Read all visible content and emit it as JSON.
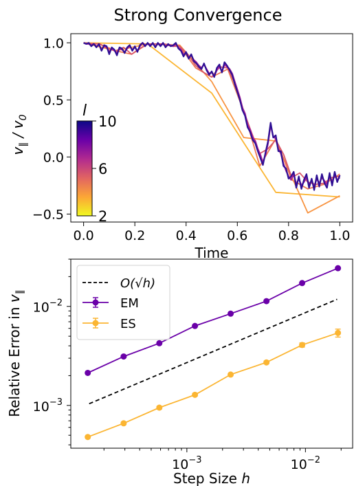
{
  "figure": {
    "title": "Strong Convergence"
  },
  "chart_data": [
    {
      "type": "line",
      "title": "Strong Convergence",
      "xlabel": "Time",
      "ylabel": "v_∥ / v_0",
      "xlim": [
        -0.05,
        1.05
      ],
      "ylim": [
        -0.57,
        1.08
      ],
      "xticks": [
        {
          "v": 0.0,
          "label": "0.0"
        },
        {
          "v": 0.2,
          "label": "0.2"
        },
        {
          "v": 0.4,
          "label": "0.4"
        },
        {
          "v": 0.6,
          "label": "0.6"
        },
        {
          "v": 0.8,
          "label": "0.8"
        },
        {
          "v": 1.0,
          "label": "1.0"
        }
      ],
      "yticks": [
        {
          "v": -0.5,
          "label": "−0.5"
        },
        {
          "v": 0.0,
          "label": "0.0"
        },
        {
          "v": 0.5,
          "label": "0.5"
        },
        {
          "v": 1.0,
          "label": "1.0"
        }
      ],
      "colorbar": {
        "label": "l",
        "min": 2,
        "max": 10,
        "ticks": [
          {
            "v": 2,
            "label": "2"
          },
          {
            "v": 6,
            "label": "6"
          },
          {
            "v": 10,
            "label": "10"
          }
        ],
        "colormap": [
          "#f0f921",
          "#fca636",
          "#e16462",
          "#b12a90",
          "#6a00a8",
          "#0d0887"
        ]
      },
      "series": [
        {
          "level": 2,
          "color": "#fbb532",
          "x": [
            0,
            0.25,
            0.5,
            0.75,
            1.0
          ],
          "y": [
            1.0,
            0.99,
            0.56,
            -0.31,
            -0.35
          ]
        },
        {
          "level": 3,
          "color": "#f89441",
          "x": [
            0,
            0.125,
            0.25,
            0.375,
            0.5,
            0.625,
            0.75,
            0.875,
            1.0
          ],
          "y": [
            1.0,
            0.93,
            0.99,
            0.98,
            0.66,
            0.17,
            0.14,
            -0.49,
            -0.34
          ]
        },
        {
          "level": 4,
          "color": "#ec7853",
          "x": [
            0,
            0.0625,
            0.125,
            0.1875,
            0.25,
            0.3125,
            0.375,
            0.4375,
            0.5,
            0.5625,
            0.625,
            0.6875,
            0.75,
            0.8125,
            0.875,
            0.9375,
            1.0
          ],
          "y": [
            1.0,
            0.99,
            0.93,
            0.9,
            0.99,
            0.99,
            0.97,
            0.78,
            0.7,
            0.77,
            0.4,
            -0.08,
            0.16,
            -0.2,
            -0.28,
            -0.24,
            -0.15
          ]
        },
        {
          "level": 5,
          "color": "#d8576b",
          "x": [
            0,
            0.03125,
            0.0625,
            0.09375,
            0.125,
            0.15625,
            0.1875,
            0.21875,
            0.25,
            0.28125,
            0.3125,
            0.34375,
            0.375,
            0.40625,
            0.4375,
            0.46875,
            0.5,
            0.53125,
            0.5625,
            0.59375,
            0.625,
            0.65625,
            0.6875,
            0.71875,
            0.75,
            0.78125,
            0.8125,
            0.84375,
            0.875,
            0.90625,
            0.9375,
            0.96875,
            1.0
          ],
          "y": [
            1.0,
            0.99,
            0.99,
            0.95,
            0.93,
            0.96,
            0.9,
            0.95,
            0.99,
            0.99,
            0.99,
            0.97,
            0.97,
            0.9,
            0.8,
            0.74,
            0.7,
            0.79,
            0.78,
            0.63,
            0.4,
            0.21,
            0.03,
            0.07,
            0.15,
            0.02,
            -0.18,
            -0.14,
            -0.22,
            -0.24,
            -0.23,
            -0.18,
            -0.17
          ]
        },
        {
          "level": 7,
          "color": "#a62098",
          "x": [
            0,
            0.01,
            0.02,
            0.03,
            0.04,
            0.05,
            0.06,
            0.07,
            0.08,
            0.09,
            0.1,
            0.11,
            0.12,
            0.13,
            0.14,
            0.15,
            0.16,
            0.17,
            0.18,
            0.19,
            0.2,
            0.21,
            0.22,
            0.23,
            0.24,
            0.25,
            0.26,
            0.27,
            0.28,
            0.29,
            0.3,
            0.31,
            0.32,
            0.33,
            0.34,
            0.35,
            0.36,
            0.37,
            0.38,
            0.39,
            0.4,
            0.41,
            0.42,
            0.43,
            0.44,
            0.45,
            0.46,
            0.47,
            0.48,
            0.49,
            0.5,
            0.51,
            0.52,
            0.53,
            0.54,
            0.55,
            0.56,
            0.57,
            0.58,
            0.59,
            0.6,
            0.61,
            0.62,
            0.63,
            0.64,
            0.65,
            0.66,
            0.67,
            0.68,
            0.69,
            0.7,
            0.71,
            0.72,
            0.73,
            0.74,
            0.75,
            0.76,
            0.77,
            0.78,
            0.79,
            0.8,
            0.81,
            0.82,
            0.83,
            0.84,
            0.85,
            0.86,
            0.87,
            0.88,
            0.89,
            0.9,
            0.91,
            0.92,
            0.93,
            0.94,
            0.95,
            0.96,
            0.97,
            0.98,
            0.99,
            1.0
          ],
          "y": [
            1.0,
            0.99,
            0.99,
            0.98,
            0.99,
            0.97,
            0.98,
            0.94,
            0.97,
            0.96,
            0.92,
            0.95,
            0.93,
            0.91,
            0.95,
            0.94,
            0.92,
            0.95,
            0.97,
            0.94,
            0.96,
            0.93,
            0.97,
            1.0,
            0.98,
            0.99,
            0.98,
            0.99,
            0.97,
            0.99,
            0.98,
            0.99,
            0.97,
            0.98,
            0.98,
            0.97,
            0.99,
            0.96,
            0.94,
            0.9,
            0.91,
            0.87,
            0.89,
            0.85,
            0.83,
            0.8,
            0.78,
            0.81,
            0.77,
            0.73,
            0.74,
            0.71,
            0.76,
            0.79,
            0.75,
            0.81,
            0.79,
            0.77,
            0.73,
            0.66,
            0.59,
            0.52,
            0.43,
            0.38,
            0.28,
            0.24,
            0.17,
            0.14,
            0.07,
            0.02,
            -0.05,
            0.02,
            0.12,
            0.28,
            0.18,
            0.16,
            0.07,
            0.03,
            -0.06,
            -0.12,
            -0.17,
            -0.2,
            -0.15,
            -0.24,
            -0.19,
            -0.25,
            -0.22,
            -0.18,
            -0.24,
            -0.21,
            -0.26,
            -0.19,
            -0.23,
            -0.18,
            -0.21,
            -0.24,
            -0.17,
            -0.22,
            -0.16,
            -0.2,
            -0.18
          ]
        },
        {
          "level": 10,
          "color": "#2e0f94",
          "x": [
            0,
            0.01,
            0.02,
            0.03,
            0.04,
            0.05,
            0.06,
            0.07,
            0.08,
            0.09,
            0.1,
            0.11,
            0.12,
            0.13,
            0.14,
            0.15,
            0.16,
            0.17,
            0.18,
            0.19,
            0.2,
            0.21,
            0.22,
            0.23,
            0.24,
            0.25,
            0.26,
            0.27,
            0.28,
            0.29,
            0.3,
            0.31,
            0.32,
            0.33,
            0.34,
            0.35,
            0.36,
            0.37,
            0.38,
            0.39,
            0.4,
            0.41,
            0.42,
            0.43,
            0.44,
            0.45,
            0.46,
            0.47,
            0.48,
            0.49,
            0.5,
            0.51,
            0.52,
            0.53,
            0.54,
            0.55,
            0.56,
            0.57,
            0.58,
            0.59,
            0.6,
            0.61,
            0.62,
            0.63,
            0.64,
            0.65,
            0.66,
            0.67,
            0.68,
            0.69,
            0.7,
            0.71,
            0.72,
            0.73,
            0.74,
            0.75,
            0.76,
            0.77,
            0.78,
            0.79,
            0.8,
            0.81,
            0.82,
            0.83,
            0.84,
            0.85,
            0.86,
            0.87,
            0.88,
            0.89,
            0.9,
            0.91,
            0.92,
            0.93,
            0.94,
            0.95,
            0.96,
            0.97,
            0.98,
            0.99,
            1.0
          ],
          "y": [
            1.0,
            0.99,
            1.0,
            0.97,
            0.99,
            0.96,
            0.99,
            0.93,
            0.98,
            0.97,
            0.9,
            0.96,
            0.94,
            0.89,
            0.96,
            0.95,
            0.91,
            0.96,
            0.98,
            0.93,
            0.97,
            0.92,
            0.98,
            1.0,
            0.97,
            1.0,
            0.97,
            1.0,
            0.96,
            1.0,
            0.97,
            1.0,
            0.96,
            0.99,
            0.97,
            0.98,
            1.0,
            0.95,
            0.93,
            0.88,
            0.92,
            0.86,
            0.9,
            0.84,
            0.82,
            0.79,
            0.77,
            0.82,
            0.76,
            0.72,
            0.75,
            0.7,
            0.78,
            0.81,
            0.74,
            0.83,
            0.8,
            0.76,
            0.72,
            0.64,
            0.57,
            0.5,
            0.41,
            0.36,
            0.26,
            0.22,
            0.15,
            0.12,
            0.05,
            -0.01,
            -0.07,
            0.04,
            0.14,
            0.3,
            0.17,
            0.19,
            0.05,
            0.05,
            -0.08,
            -0.1,
            -0.19,
            -0.17,
            -0.13,
            -0.27,
            -0.17,
            -0.28,
            -0.2,
            -0.15,
            -0.27,
            -0.19,
            -0.29,
            -0.16,
            -0.26,
            -0.15,
            -0.23,
            -0.27,
            -0.14,
            -0.25,
            -0.13,
            -0.22,
            -0.16
          ]
        }
      ]
    },
    {
      "type": "line",
      "xlabel": "Step Size h",
      "ylabel": "Relative Error in v_∥",
      "xscale": "log",
      "yscale": "log",
      "xlim": [
        0.000105,
        0.025
      ],
      "ylim": [
        0.00037,
        0.03
      ],
      "xticks": [
        {
          "v": 0.001,
          "base": "10",
          "exp": "−3"
        },
        {
          "v": 0.01,
          "base": "10",
          "exp": "−2"
        }
      ],
      "yticks": [
        {
          "v": 0.001,
          "base": "10",
          "exp": "−3"
        },
        {
          "v": 0.01,
          "base": "10",
          "exp": "−2"
        }
      ],
      "legend": {
        "position": "top-left",
        "ref_label": "O(√h)",
        "entries": [
          "EM",
          "ES"
        ]
      },
      "reference": {
        "x": [
          0.00015,
          0.0185
        ],
        "y": [
          0.00104,
          0.0118
        ],
        "color": "#000000",
        "style": "dashed"
      },
      "series": [
        {
          "name": "EM",
          "color": "#6a00a8",
          "x": [
            0.000146,
            0.000293,
            0.000586,
            0.00117,
            0.00234,
            0.00469,
            0.00938,
            0.0188
          ],
          "y": [
            0.00213,
            0.00312,
            0.00425,
            0.00635,
            0.00845,
            0.0113,
            0.0172,
            0.0243
          ],
          "err": [
            4e-05,
            6e-05,
            8e-05,
            0.0001,
            0.00014,
            0.0002,
            0.0003,
            0.0004
          ]
        },
        {
          "name": "ES",
          "color": "#fbb532",
          "x": [
            0.000146,
            0.000293,
            0.000586,
            0.00117,
            0.00234,
            0.00469,
            0.00938,
            0.0188
          ],
          "y": [
            0.00048,
            0.00066,
            0.00095,
            0.00128,
            0.00205,
            0.00272,
            0.00408,
            0.0054
          ],
          "err": [
            1e-05,
            2e-05,
            3e-05,
            4e-05,
            5e-05,
            8e-05,
            0.0002,
            0.0005
          ]
        }
      ]
    }
  ]
}
